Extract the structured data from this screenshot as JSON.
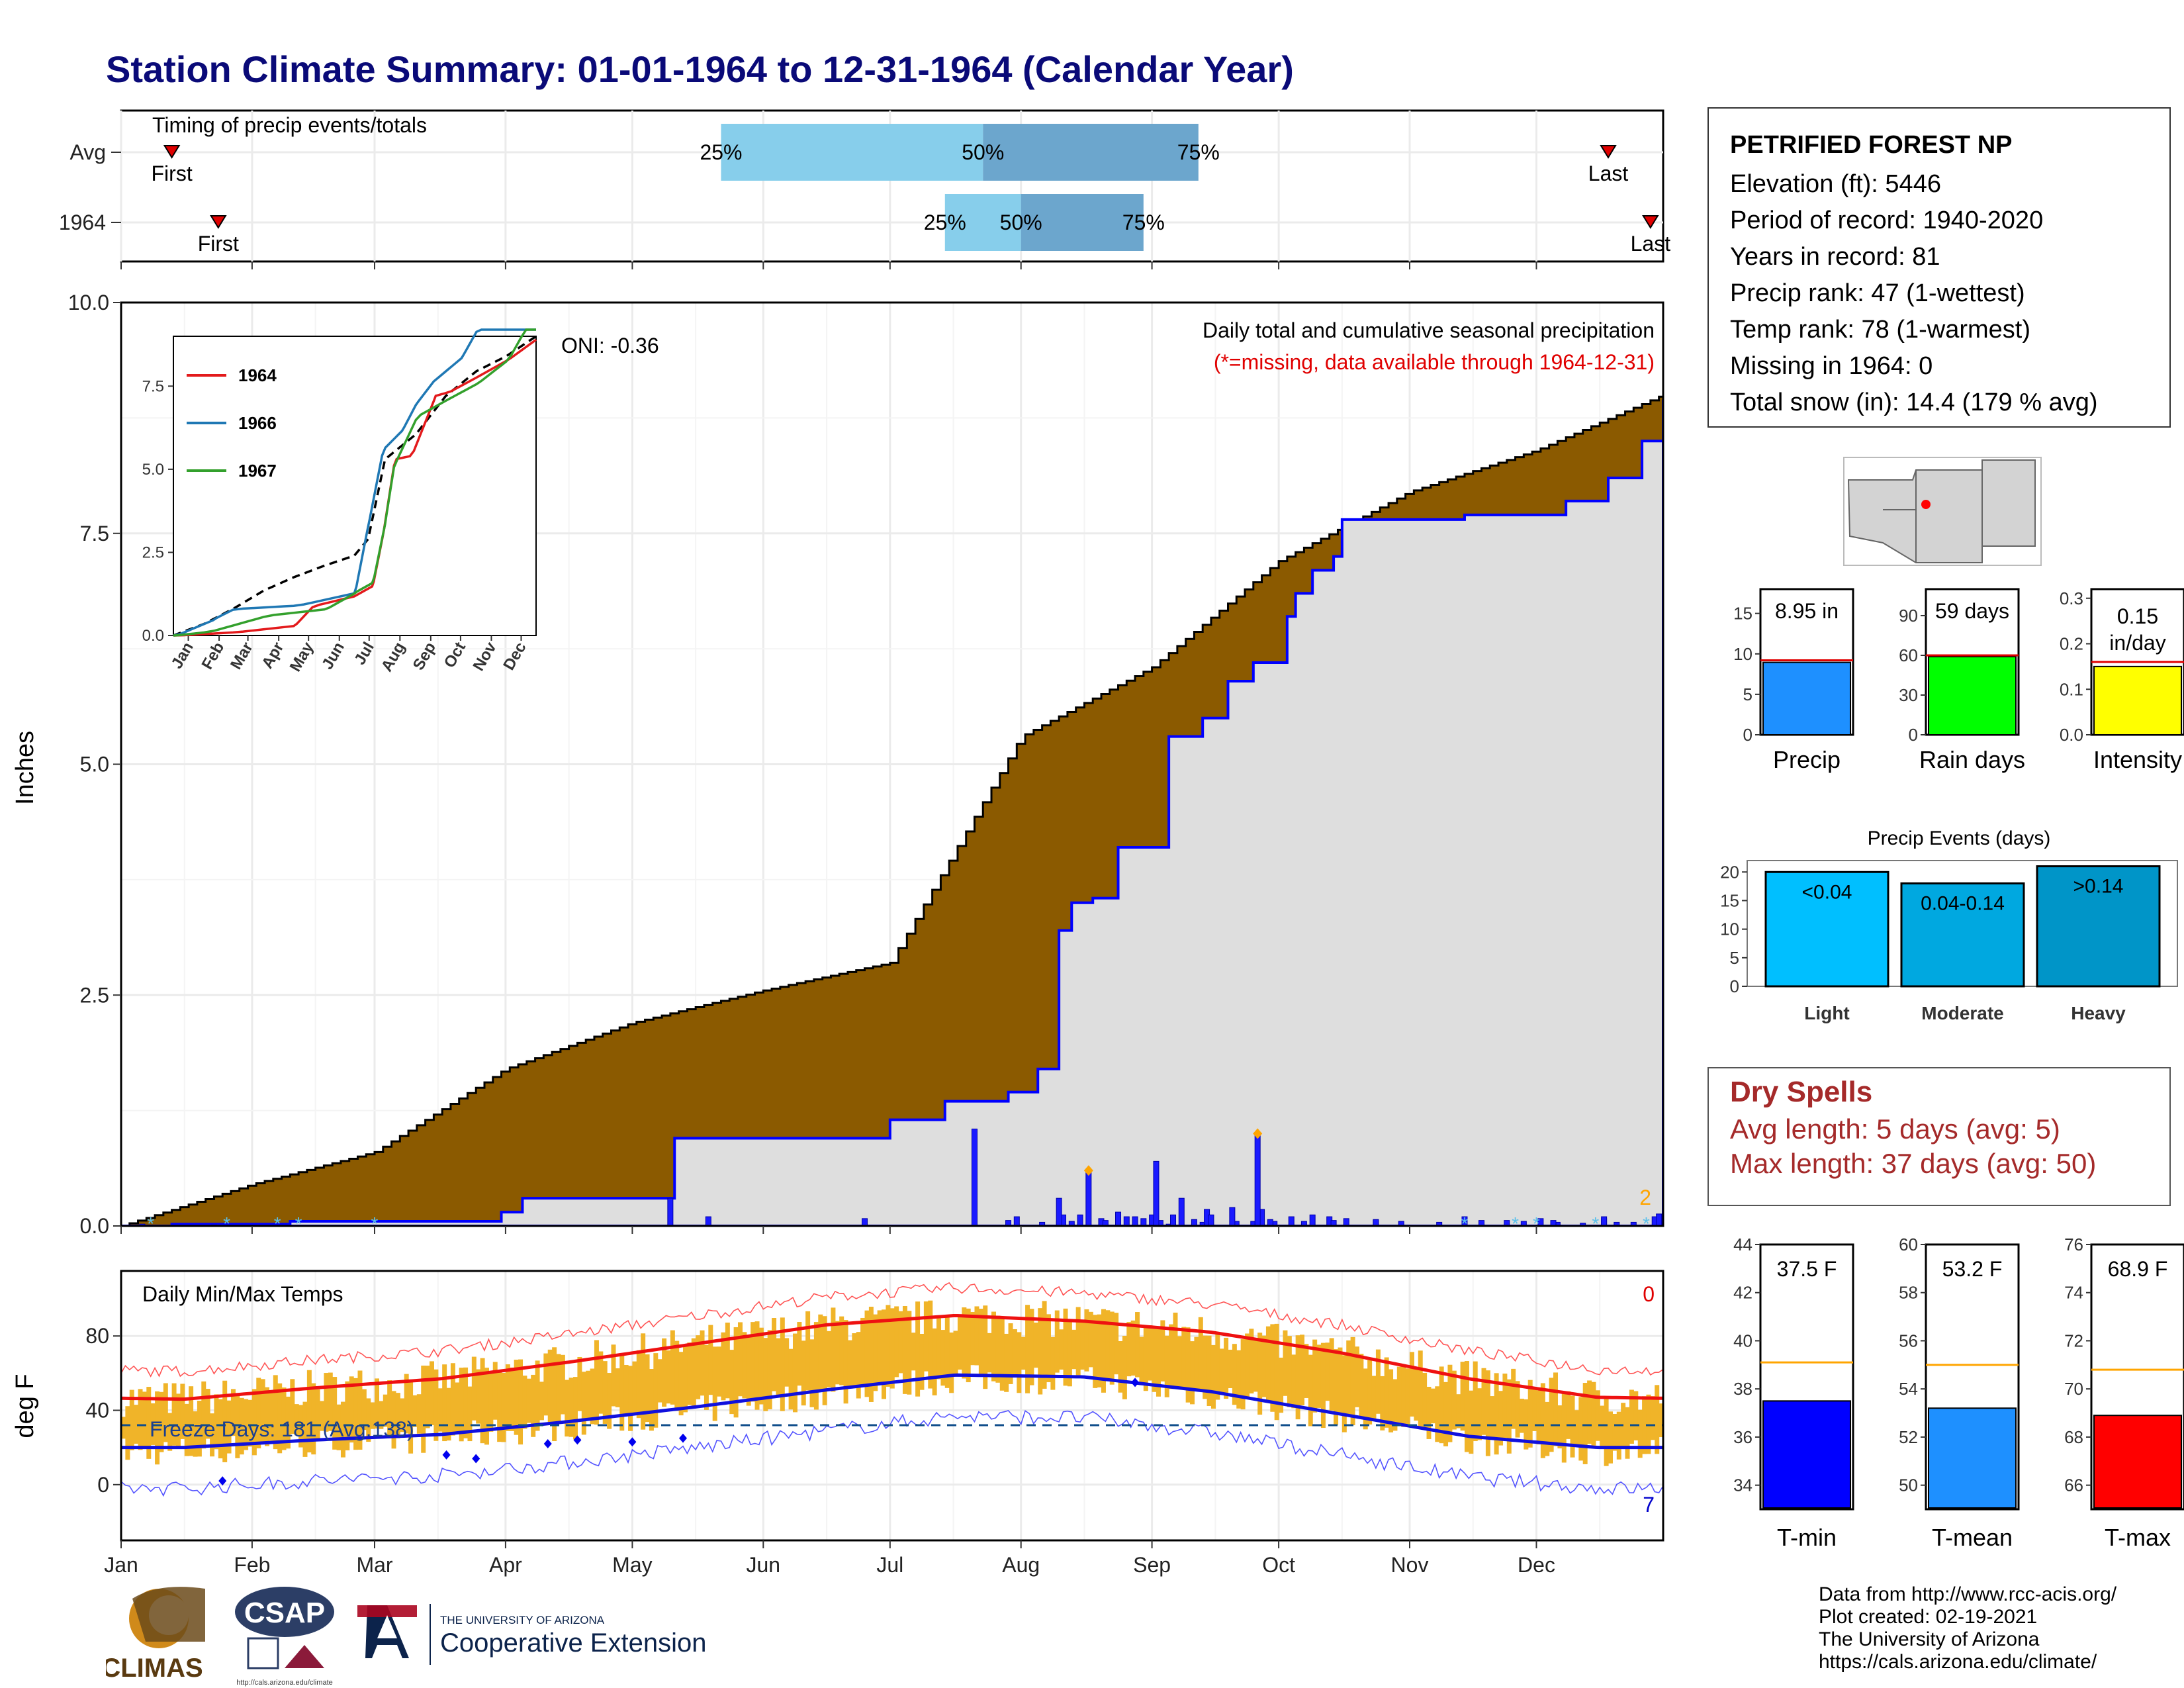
{
  "title": "Station Climate Summary: 01-01-1964 to 12-31-1964 (Calendar Year)",
  "station": {
    "name": "PETRIFIED FOREST NP",
    "lines": [
      "Elevation (ft): 5446",
      "Period of record: 1940-2020",
      "Years in record: 81",
      "Precip rank: 47 (1-wettest)",
      "Temp rank: 78 (1-warmest)",
      "Missing in 1964: 0",
      "Total snow (in): 14.4 (179 % avg)"
    ]
  },
  "timing": {
    "label": "Timing of precip events/totals",
    "rows": [
      {
        "name": "Avg",
        "first_label": "First",
        "last_label": "Last",
        "first_day": 12,
        "last_day": 352,
        "p25_day": 142,
        "p50_day": 204,
        "p75_day": 255,
        "p25": "25%",
        "p50": "50%",
        "p75": "75%"
      },
      {
        "name": "1964",
        "first_label": "First",
        "last_label": "Last",
        "first_day": 23,
        "last_day": 362,
        "p25_day": 195,
        "p50_day": 213,
        "p75_day": 242,
        "p25": "25%",
        "p50": "50%",
        "p75": "75%"
      }
    ]
  },
  "precip": {
    "heading": "Daily total and cumulative seasonal precipitation",
    "note": "(*=missing, data available through 1964-12-31)",
    "oni": "ONI: -0.36",
    "ylabel": "Inches",
    "ylim": [
      0,
      10
    ],
    "yticks": [
      "0.0",
      "2.5",
      "5.0",
      "7.5",
      "10.0"
    ],
    "corner_count": "2",
    "colors": {
      "deficit": "#8b5a00",
      "surplus": "#008000",
      "obs_line": "#0000ff",
      "fill": "#dedede"
    }
  },
  "inset": {
    "legend": [
      "1964",
      "1966",
      "1967"
    ],
    "colors": [
      "#e31a1c",
      "#1f78b4",
      "#33a02c"
    ],
    "yticks": [
      "0.0",
      "2.5",
      "5.0",
      "7.5"
    ],
    "months": [
      "Jan",
      "Feb",
      "Mar",
      "Apr",
      "May",
      "Jun",
      "Jul",
      "Aug",
      "Sep",
      "Oct",
      "Nov",
      "Dec"
    ]
  },
  "temps": {
    "heading": "Daily Min/Max Temps",
    "ylabel": "deg F",
    "yticks": [
      "0",
      "40",
      "80"
    ],
    "freeze": "Freeze Days: 181 (Avg:138)",
    "corner_hot": "0",
    "corner_cold": "7"
  },
  "months": [
    "Jan",
    "Feb",
    "Mar",
    "Apr",
    "May",
    "Jun",
    "Jul",
    "Aug",
    "Sep",
    "Oct",
    "Nov",
    "Dec"
  ],
  "bar_panels": [
    {
      "label": "Precip",
      "value_text": "8.95 in",
      "color": "#1e90ff",
      "yticks": [
        "0",
        "5",
        "10",
        "15"
      ]
    },
    {
      "label": "Rain days",
      "value_text": "59 days",
      "color": "#00ff00",
      "yticks": [
        "0",
        "30",
        "60",
        "90"
      ]
    },
    {
      "label": "Intensity",
      "value_text": "0.15 in/day",
      "color": "#ffff00",
      "yticks": [
        "0.0",
        "0.1",
        "0.2",
        "0.3"
      ]
    }
  ],
  "events": {
    "title": "Precip Events (days)",
    "categories": [
      "Light",
      "Moderate",
      "Heavy"
    ],
    "labels": [
      "<0.04",
      "0.04-0.14",
      ">0.14"
    ],
    "yticks": [
      "0",
      "5",
      "10",
      "15",
      "20"
    ]
  },
  "dry": {
    "title": "Dry Spells",
    "avg": "Avg length: 5 days (avg: 5)",
    "max": "Max length: 37 days (avg: 50)"
  },
  "temp_panels": [
    {
      "label": "T-min",
      "value_text": "37.5 F",
      "color": "#0000ff",
      "yticks": [
        "34",
        "36",
        "38",
        "40",
        "42",
        "44"
      ]
    },
    {
      "label": "T-mean",
      "value_text": "53.2 F",
      "color": "#1e90ff",
      "yticks": [
        "50",
        "52",
        "54",
        "56",
        "58",
        "60"
      ]
    },
    {
      "label": "T-max",
      "value_text": "68.9 F",
      "color": "#ff0000",
      "yticks": [
        "66",
        "68",
        "70",
        "72",
        "74",
        "76"
      ]
    }
  ],
  "credits": [
    "Data from http://www.rcc-acis.org/",
    "Plot created: 02-19-2021",
    "The University of Arizona",
    "https://cals.arizona.edu/climate/"
  ],
  "logos": {
    "climas": "CLIMAS",
    "csap": "CSAP",
    "csap_url": "http://cals.arizona.edu/climate",
    "ua_line1": "THE UNIVERSITY OF ARIZONA",
    "ua_line2": "Cooperative Extension"
  },
  "chart_data": [
    {
      "type": "area",
      "title": "Daily total and cumulative seasonal precipitation",
      "xlabel": "",
      "ylabel": "Inches",
      "ylim": [
        0,
        10
      ],
      "x": [
        "Jan 1",
        "Feb 1",
        "Mar 1",
        "Apr 1",
        "May 1",
        "Jun 1",
        "Jul 1",
        "Aug 1",
        "Sep 1",
        "Oct 1",
        "Nov 1",
        "Dec 1",
        "Dec 31"
      ],
      "series": [
        {
          "name": "Average",
          "values": [
            0.0,
            0.45,
            0.8,
            1.7,
            2.2,
            2.55,
            2.85,
            5.3,
            6.05,
            7.2,
            7.95,
            8.4,
            9.0
          ]
        },
        {
          "name": "1964",
          "values": [
            0.0,
            0.05,
            0.15,
            0.3,
            0.3,
            0.95,
            1.3,
            5.35,
            5.7,
            7.65,
            7.65,
            8.1,
            8.95
          ]
        }
      ]
    },
    {
      "type": "bar",
      "title": "",
      "categories": [
        "Precip",
        "Rain days",
        "Intensity"
      ],
      "series": [
        {
          "name": "",
          "values": [
            8.95,
            59,
            0.15
          ]
        },
        {
          "name": "Average",
          "values": [
            9.2,
            60,
            0.16
          ]
        }
      ]
    },
    {
      "type": "bar",
      "title": "Precip Events (days)",
      "categories": [
        "Light",
        "Moderate",
        "Heavy"
      ],
      "values": [
        20,
        18,
        21
      ],
      "ylim": [
        0,
        22
      ]
    },
    {
      "type": "bar",
      "title": "",
      "categories": [
        "T-min",
        "T-mean",
        "T-max"
      ],
      "series": [
        {
          "name": "",
          "values": [
            37.5,
            53.2,
            68.9
          ]
        },
        {
          "name": "Average",
          "values": [
            39.1,
            55.0,
            70.8
          ]
        }
      ]
    },
    {
      "type": "line",
      "title": "Daily Min/Max Temps",
      "ylabel": "deg F",
      "x": [
        "Jan",
        "Feb",
        "Mar",
        "Apr",
        "May",
        "Jun",
        "Jul",
        "Aug",
        "Sep",
        "Oct",
        "Nov",
        "Dec"
      ],
      "series": [
        {
          "name": "Avg max",
          "values": [
            46,
            52,
            57,
            66,
            76,
            86,
            91,
            88,
            82,
            71,
            57,
            47
          ]
        },
        {
          "name": "Avg min",
          "values": [
            20,
            24,
            27,
            34,
            42,
            51,
            59,
            58,
            50,
            38,
            26,
            20
          ]
        }
      ]
    }
  ]
}
